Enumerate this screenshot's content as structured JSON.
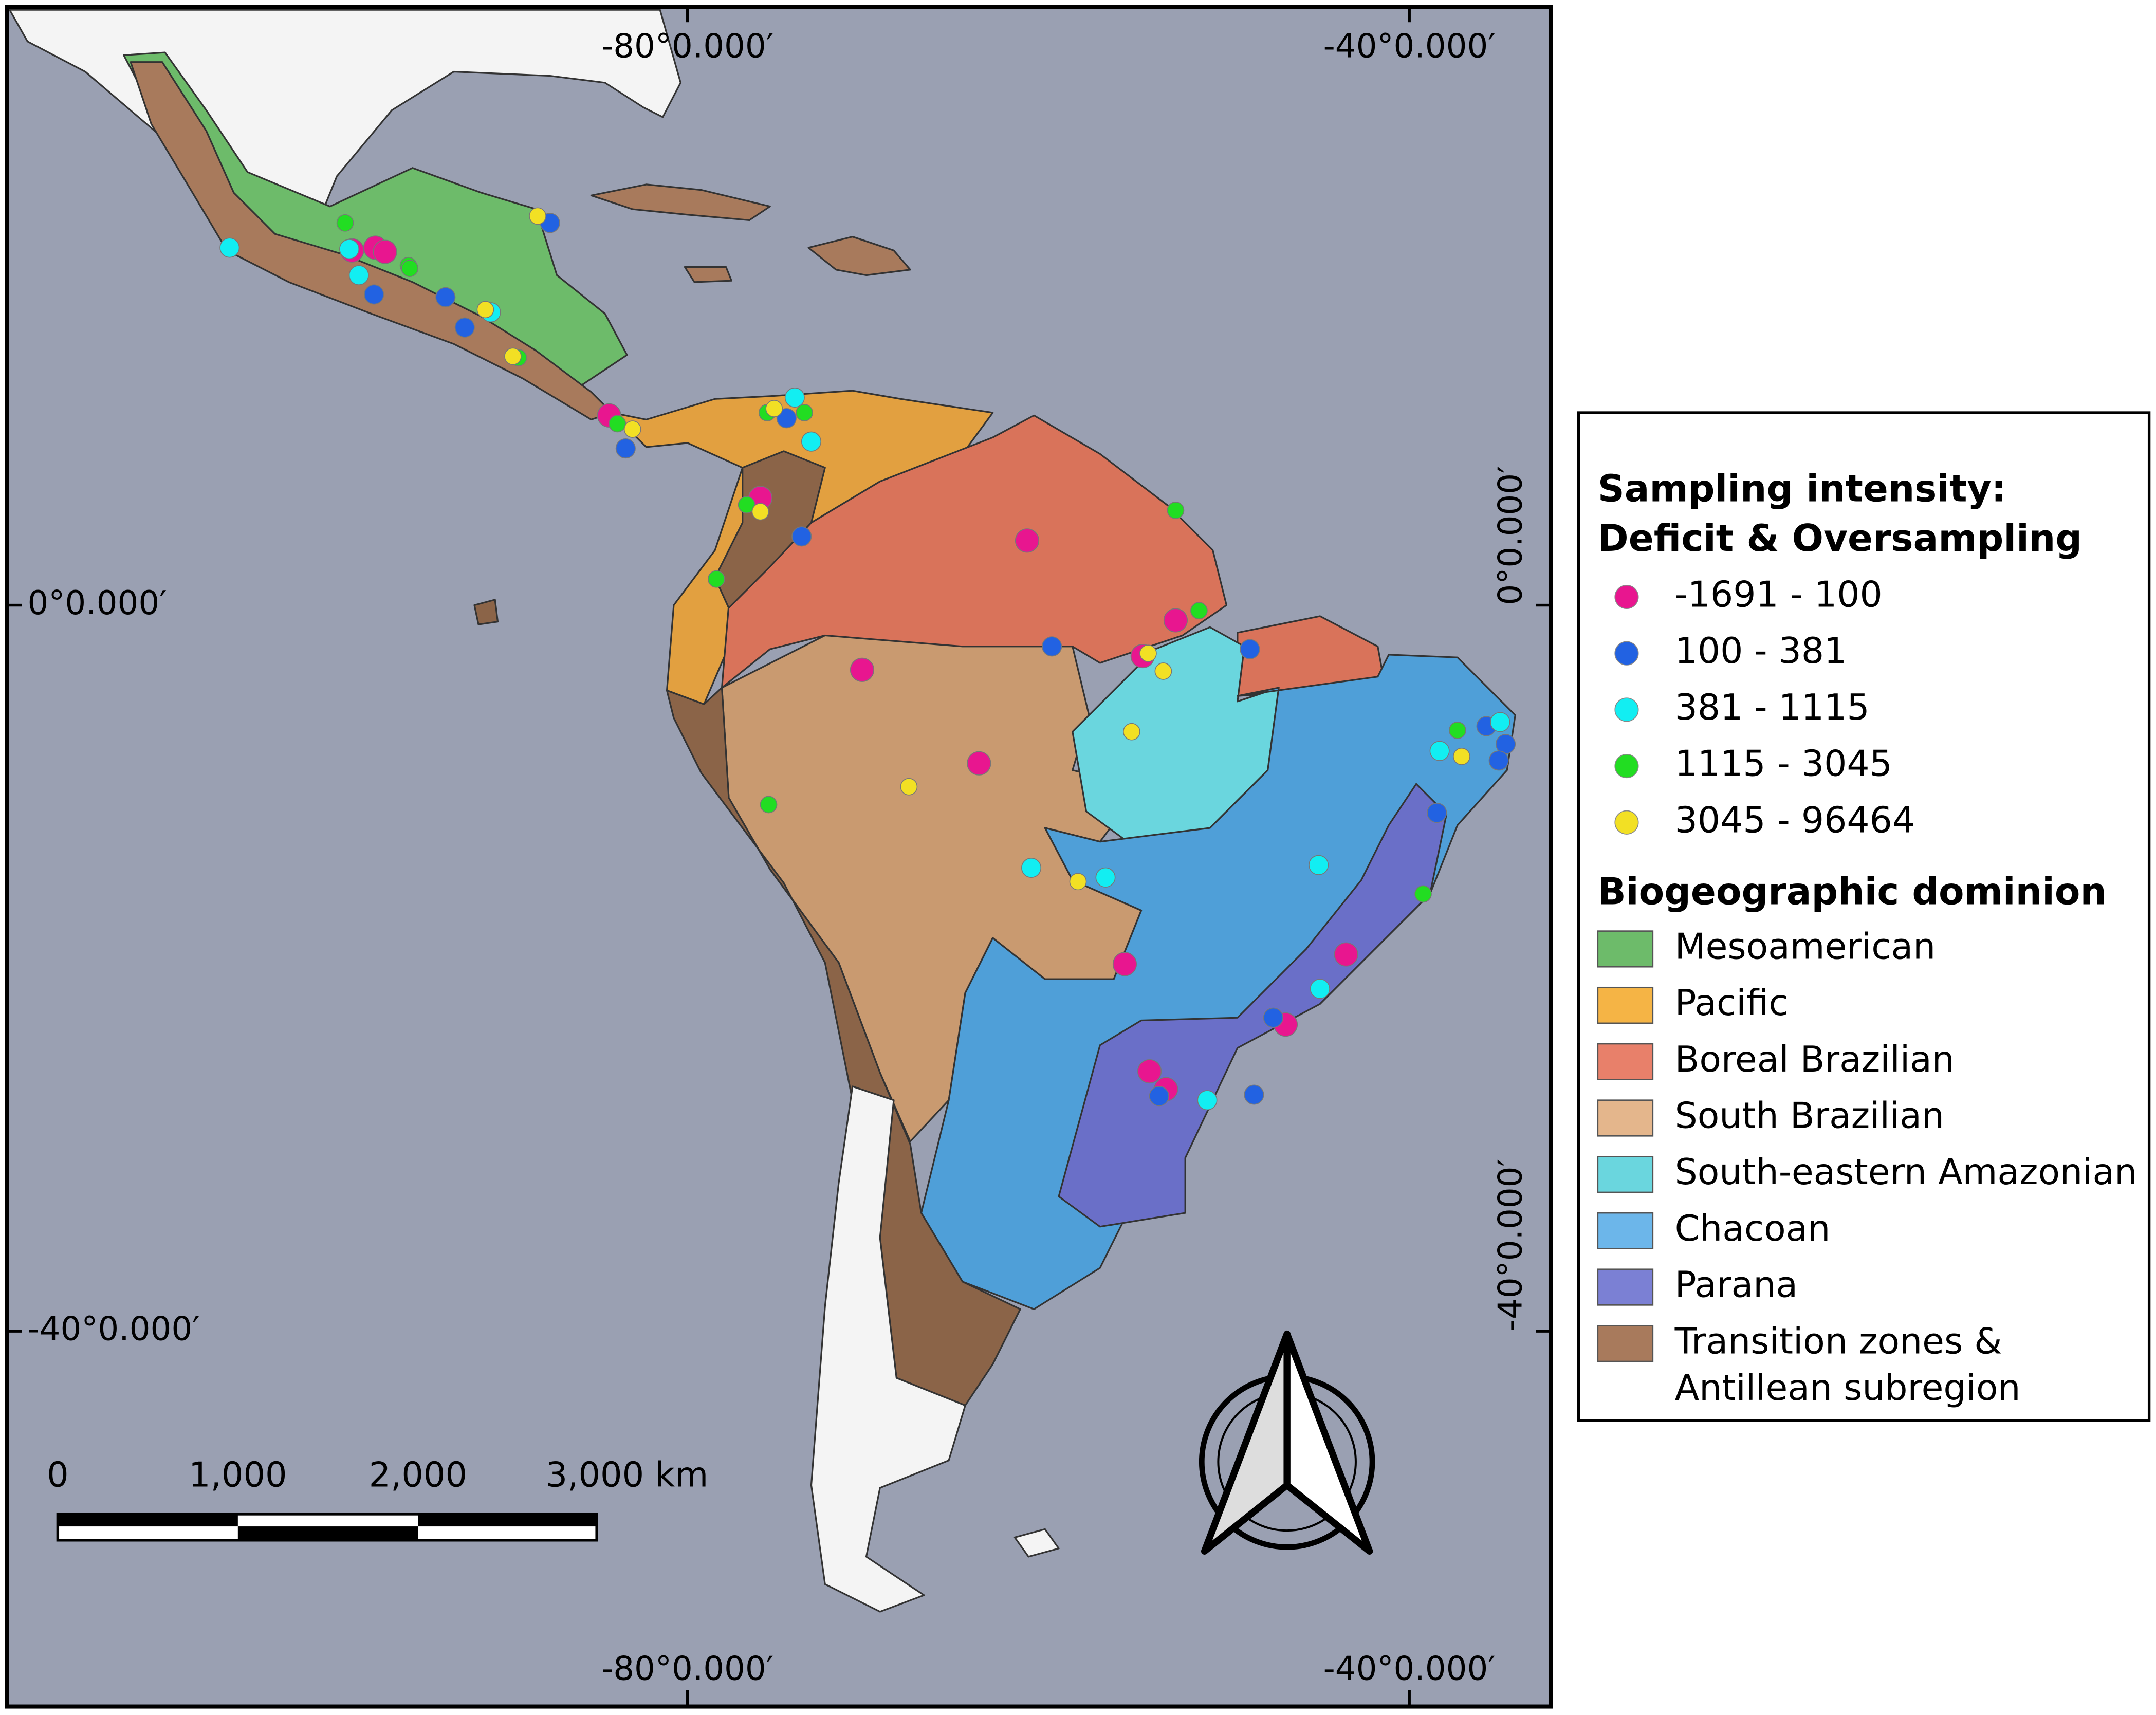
{
  "map": {
    "graticule_labels": {
      "top": [
        "-80°0.000′",
        "-40°0.000′"
      ],
      "bottom": [
        "-80°0.000′",
        "-40°0.000′"
      ],
      "left": [
        "0°0.000′",
        "-40°0.000′"
      ],
      "right": [
        "0°0.000′",
        "-40°0.000′"
      ]
    },
    "scale_bar": {
      "labels": [
        "0",
        "1,000",
        "2,000",
        "3,000 km"
      ]
    },
    "legend": {
      "sampling_title": [
        "Sampling intensity:",
        "Deficit & Oversampling"
      ],
      "sampling_classes": [
        {
          "label": "-1691 - 100",
          "color": "#e8168f"
        },
        {
          "label": "100 - 381",
          "color": "#2262e2"
        },
        {
          "label": "381 - 1115",
          "color": "#12eef2"
        },
        {
          "label": "1115 - 3045",
          "color": "#22dd22"
        },
        {
          "label": "3045 - 96464",
          "color": "#f2e024"
        }
      ],
      "dominion_title": "Biogeographic dominion",
      "dominions": [
        {
          "label": [
            "Mesoamerican"
          ],
          "color": "#6dbb6a"
        },
        {
          "label": [
            "Pacific"
          ],
          "color": "#f5b445"
        },
        {
          "label": [
            "Boreal Brazilian"
          ],
          "color": "#e8806a"
        },
        {
          "label": [
            "South Brazilian"
          ],
          "color": "#e4b68c"
        },
        {
          "label": [
            "South-eastern Amazonian"
          ],
          "color": "#6ad6de"
        },
        {
          "label": [
            "Chacoan"
          ],
          "color": "#6cb6ea"
        },
        {
          "label": [
            "Parana"
          ],
          "color": "#7b80d4"
        },
        {
          "label": [
            "Transition zones &",
            "Antillean subregion"
          ],
          "color": "#a87a5c"
        }
      ]
    }
  }
}
